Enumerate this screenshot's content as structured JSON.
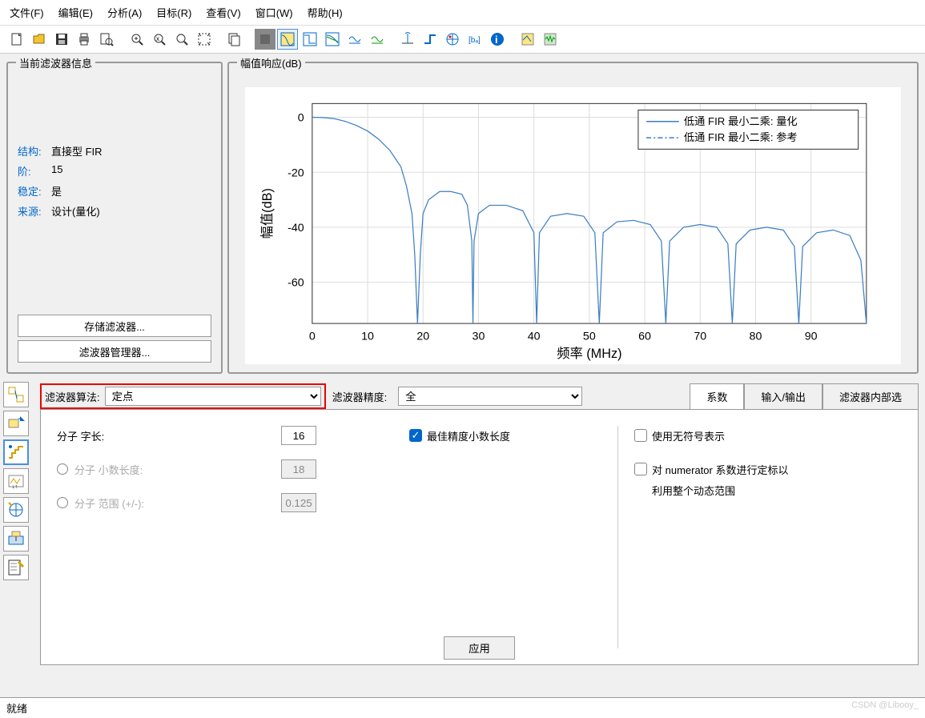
{
  "menu": {
    "file": "文件(F)",
    "edit": "编辑(E)",
    "analysis": "分析(A)",
    "target": "目标(R)",
    "view": "查看(V)",
    "window": "窗口(W)",
    "help": "帮助(H)"
  },
  "filter_info": {
    "title": "当前滤波器信息",
    "structure_label": "结构:",
    "structure_value": "直接型 FIR",
    "order_label": "阶:",
    "order_value": "15",
    "stable_label": "稳定:",
    "stable_value": "是",
    "source_label": "来源:",
    "source_value": "设计(量化)",
    "save_btn": "存储滤波器...",
    "mgr_btn": "滤波器管理器..."
  },
  "chart": {
    "title": "幅值响应(dB)",
    "ylabel": "幅值(dB)",
    "xlabel": "频率 (MHz)",
    "legend1": "低通 FIR 最小二乘: 量化",
    "legend2": "低通 FIR 最小二乘: 参考",
    "xlim": [
      0,
      100
    ],
    "ylim": [
      -75,
      5
    ],
    "xticks": [
      0,
      10,
      20,
      30,
      40,
      50,
      60,
      70,
      80,
      90
    ],
    "yticks": [
      0,
      -20,
      -40,
      -60
    ],
    "line_color": "#3b7dc4",
    "grid_color": "#dddddd",
    "bg": "#ffffff",
    "curve": [
      [
        0,
        0
      ],
      [
        2,
        -0.1
      ],
      [
        4,
        -0.5
      ],
      [
        6,
        -1.5
      ],
      [
        8,
        -3
      ],
      [
        10,
        -5
      ],
      [
        12,
        -8
      ],
      [
        14,
        -12
      ],
      [
        16,
        -18
      ],
      [
        17,
        -25
      ],
      [
        18,
        -35
      ],
      [
        18.5,
        -50
      ],
      [
        19,
        -75
      ],
      [
        19.5,
        -50
      ],
      [
        20,
        -35
      ],
      [
        21,
        -30
      ],
      [
        23,
        -27
      ],
      [
        25,
        -27
      ],
      [
        27,
        -28
      ],
      [
        28,
        -32
      ],
      [
        28.8,
        -45
      ],
      [
        29,
        -75
      ],
      [
        29.2,
        -45
      ],
      [
        30,
        -35
      ],
      [
        32,
        -32
      ],
      [
        35,
        -32
      ],
      [
        38,
        -34
      ],
      [
        40,
        -42
      ],
      [
        40.5,
        -75
      ],
      [
        41,
        -42
      ],
      [
        43,
        -36
      ],
      [
        46,
        -35
      ],
      [
        49,
        -36
      ],
      [
        51,
        -42
      ],
      [
        51.8,
        -75
      ],
      [
        52.5,
        -42
      ],
      [
        55,
        -38
      ],
      [
        58,
        -37.5
      ],
      [
        61,
        -39
      ],
      [
        63,
        -45
      ],
      [
        63.8,
        -75
      ],
      [
        64.5,
        -45
      ],
      [
        67,
        -40
      ],
      [
        70,
        -39
      ],
      [
        73,
        -40
      ],
      [
        75,
        -46
      ],
      [
        75.8,
        -75
      ],
      [
        76.5,
        -46
      ],
      [
        79,
        -41
      ],
      [
        82,
        -40
      ],
      [
        85,
        -41
      ],
      [
        87,
        -47
      ],
      [
        87.8,
        -75
      ],
      [
        88.5,
        -47
      ],
      [
        91,
        -42
      ],
      [
        94,
        -41
      ],
      [
        97,
        -43
      ],
      [
        99,
        -52
      ],
      [
        100,
        -75
      ]
    ]
  },
  "config": {
    "algo_label": "滤波器算法:",
    "algo_value": "定点",
    "precision_label": "滤波器精度:",
    "precision_value": "全",
    "tab1": "系数",
    "tab2": "输入/输出",
    "tab3": "滤波器内部选",
    "wordlen_label": "分子 字长:",
    "wordlen_value": "16",
    "best_precision": "最佳精度小数长度",
    "fraclen_label": "分子 小数长度:",
    "fraclen_value": "18",
    "range_label": "分子 范围 (+/-):",
    "range_value": "0.125",
    "unsigned": "使用无符号表示",
    "scale_num1": "对 numerator 系数进行定标以",
    "scale_num2": "利用整个动态范围",
    "apply": "应用"
  },
  "status": {
    "ready": "就绪",
    "watermark": "CSDN @Libooy_"
  }
}
